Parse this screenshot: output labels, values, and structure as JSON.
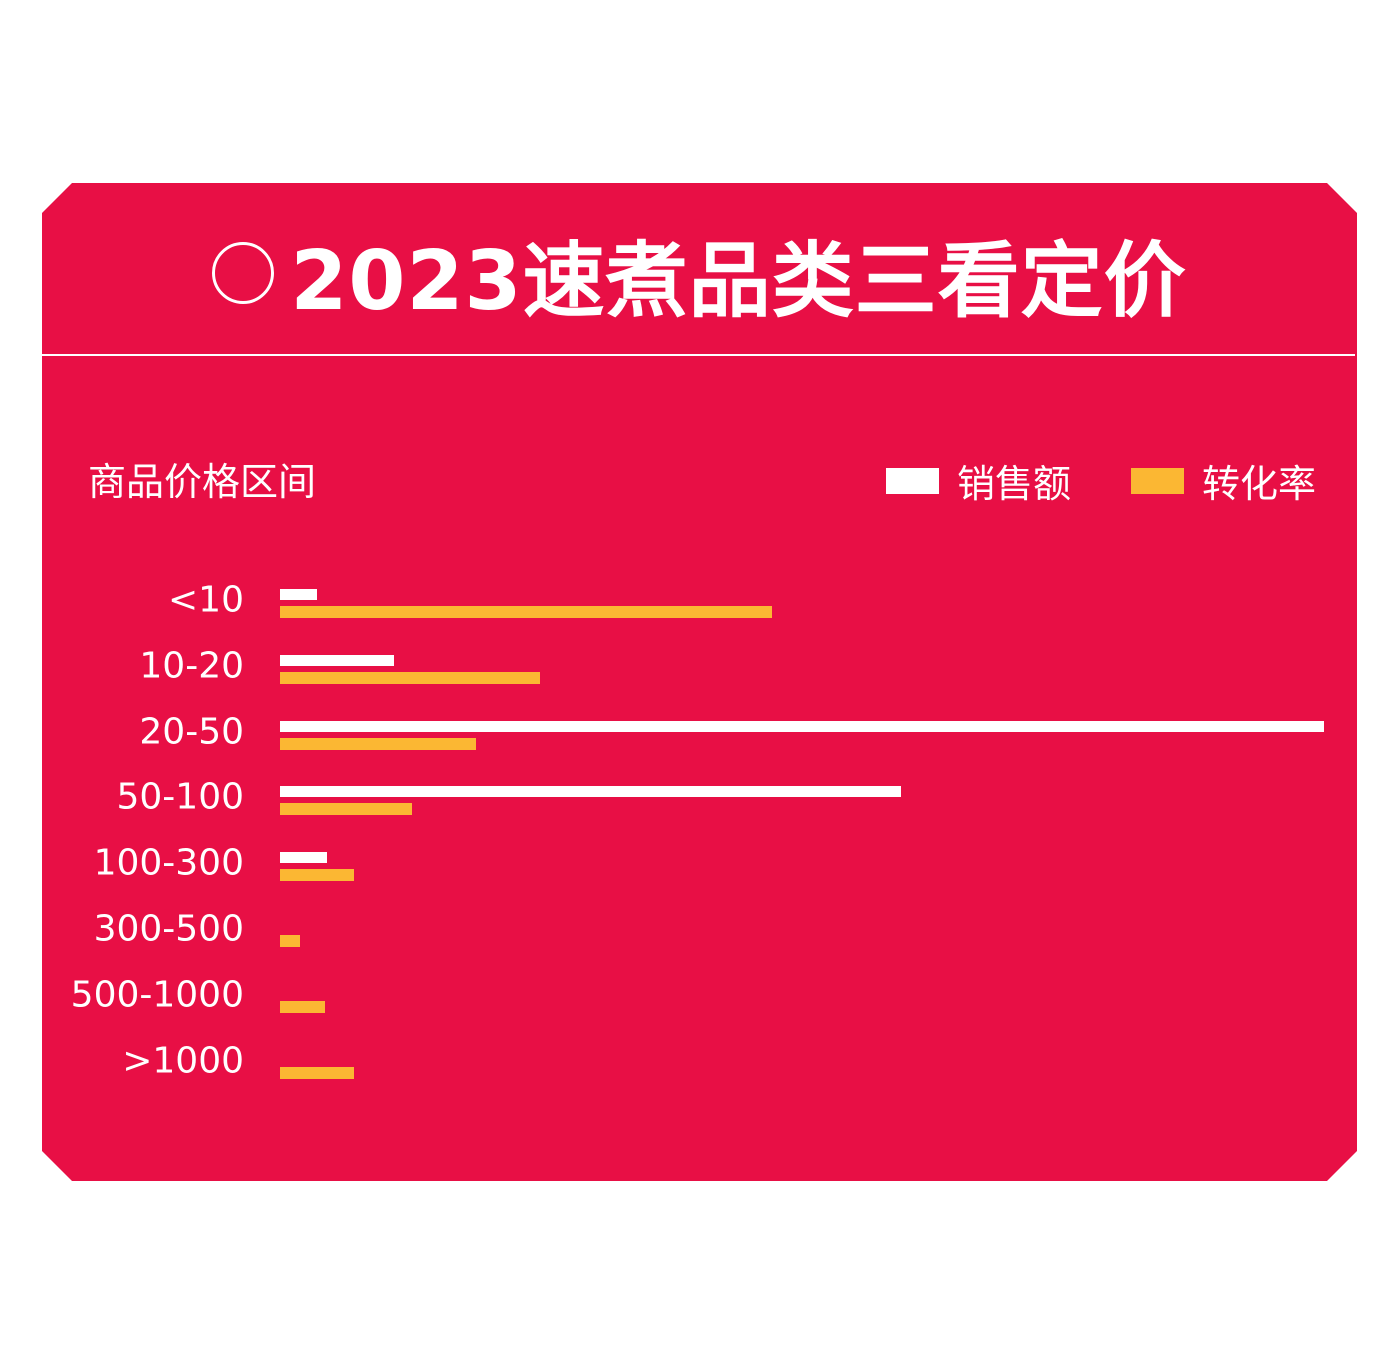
{
  "title": "2023速煮品类三看定价",
  "title_icon": "circle-outline-icon",
  "colors": {
    "background": "#e80f45",
    "sales": "#ffffff",
    "conversion": "#fbb733"
  },
  "chart_data": {
    "type": "bar",
    "orientation": "horizontal",
    "title": "2023速煮品类三看定价",
    "ylabel": "商品价格区间",
    "xlabel": "",
    "axis_visible": false,
    "grid": false,
    "legend_position": "top-right",
    "value_scale_note_unit": "relative (percent of longest bar)",
    "categories": [
      "<10",
      "10-20",
      "20-50",
      "50-100",
      "100-300",
      "300-500",
      "500-1000",
      ">1000"
    ],
    "series": [
      {
        "name": "销售额",
        "color": "#ffffff",
        "values": [
          3.5,
          10.9,
          100,
          59.5,
          4.5,
          0,
          0,
          0
        ]
      },
      {
        "name": "转化率",
        "color": "#fbb733",
        "values": [
          47.1,
          24.9,
          18.8,
          12.6,
          7.1,
          1.9,
          4.3,
          7.1
        ]
      }
    ]
  }
}
